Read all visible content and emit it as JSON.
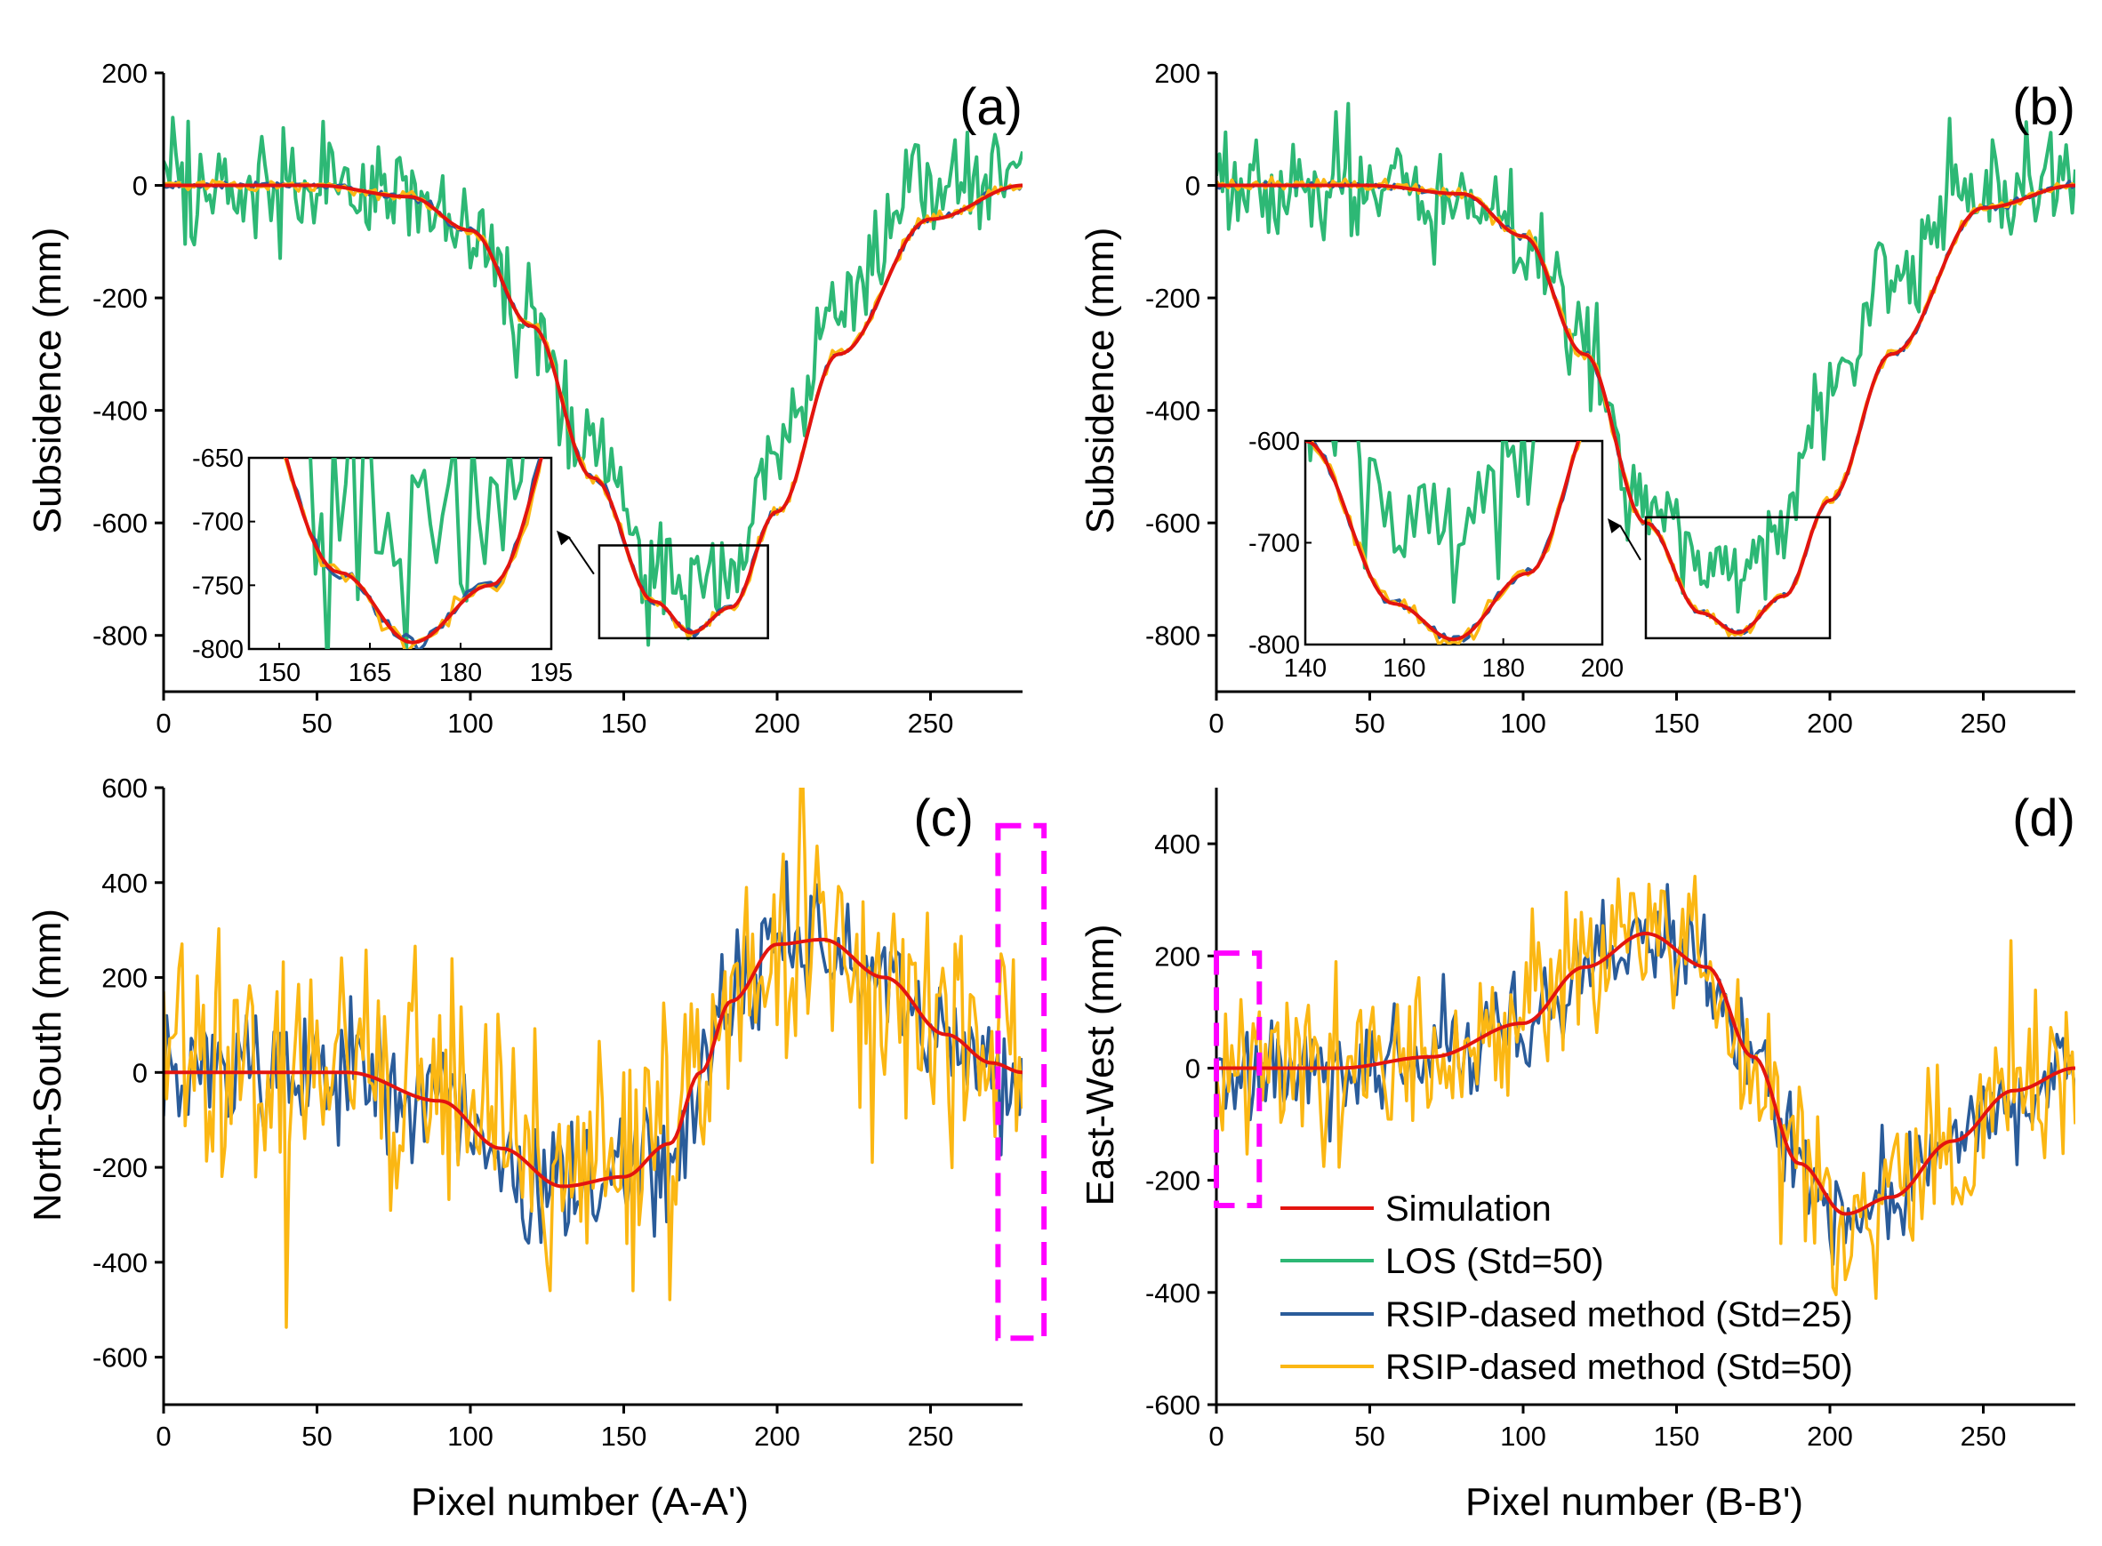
{
  "figure": {
    "series_names": [
      "Simulation",
      "LOS (Std=50)",
      "RSIP-dased method (Std=25)",
      "RSIP-dased method (Std=50)"
    ],
    "colors": {
      "simulation": "#e3140f",
      "los": "#2db875",
      "rsip25": "#2a5c9a",
      "rsip50": "#fbb713",
      "highlight": "#ff00ff",
      "axis": "#000000"
    }
  },
  "chart_data": [
    {
      "id": "a",
      "type": "line",
      "panel_label": "(a)",
      "title": "",
      "xlabel": "",
      "ylabel": "Subsidence (mm)",
      "xlim": [
        0,
        280
      ],
      "ylim": [
        -900,
        200
      ],
      "xticks": [
        0,
        50,
        100,
        150,
        200,
        250
      ],
      "yticks": [
        200,
        0,
        -200,
        -400,
        -600,
        -800
      ],
      "series": [
        {
          "name": "Simulation",
          "role": "simulation",
          "noise": 0,
          "values_x": [
            0,
            50,
            80,
            100,
            120,
            140,
            160,
            172,
            185,
            200,
            220,
            250,
            280
          ],
          "values_y": [
            0,
            0,
            -20,
            -80,
            -250,
            -520,
            -740,
            -795,
            -750,
            -580,
            -300,
            -60,
            0
          ]
        },
        {
          "name": "LOS (Std=50)",
          "role": "los",
          "noise": 50,
          "values_x": [
            0,
            50,
            80,
            100,
            120,
            140,
            160,
            172,
            185,
            200,
            220,
            250,
            280
          ],
          "values_y": [
            0,
            0,
            -20,
            -70,
            -260,
            -480,
            -670,
            -720,
            -640,
            -470,
            -200,
            0,
            20
          ]
        },
        {
          "name": "RSIP-dased method (Std=25)",
          "role": "rsip25",
          "noise": 3,
          "values_x": [
            0,
            50,
            80,
            100,
            120,
            140,
            160,
            172,
            185,
            200,
            220,
            250,
            280
          ],
          "values_y": [
            0,
            0,
            -20,
            -80,
            -250,
            -520,
            -740,
            -795,
            -750,
            -580,
            -300,
            -60,
            0
          ]
        },
        {
          "name": "RSIP-dased method (Std=50)",
          "role": "rsip50",
          "noise": 5,
          "values_x": [
            0,
            50,
            80,
            100,
            120,
            140,
            160,
            172,
            185,
            200,
            220,
            250,
            280
          ],
          "values_y": [
            0,
            0,
            -20,
            -80,
            -250,
            -520,
            -740,
            -795,
            -750,
            -580,
            -300,
            -60,
            0
          ]
        }
      ],
      "inset": {
        "xlim": [
          145,
          195
        ],
        "ylim": [
          -800,
          -650
        ],
        "xticks": [
          150,
          165,
          180,
          195
        ],
        "yticks": [
          -650,
          -700,
          -750,
          -800
        ],
        "zoom_box": {
          "x": [
            142,
            197
          ],
          "y": [
            -640,
            -805
          ]
        }
      }
    },
    {
      "id": "b",
      "type": "line",
      "panel_label": "(b)",
      "title": "",
      "xlabel": "",
      "ylabel": "Subsidence (mm)",
      "xlim": [
        0,
        280
      ],
      "ylim": [
        -900,
        200
      ],
      "xticks": [
        0,
        50,
        100,
        150,
        200,
        250
      ],
      "yticks": [
        200,
        0,
        -200,
        -400,
        -600,
        -800
      ],
      "series": [
        {
          "name": "Simulation",
          "role": "simulation",
          "noise": 0,
          "values_x": [
            0,
            50,
            80,
            100,
            120,
            140,
            158,
            170,
            185,
            200,
            220,
            250,
            280
          ],
          "values_y": [
            0,
            0,
            -15,
            -90,
            -300,
            -600,
            -760,
            -795,
            -730,
            -560,
            -300,
            -40,
            0
          ]
        },
        {
          "name": "LOS (Std=50)",
          "role": "los",
          "noise": 50,
          "values_x": [
            0,
            50,
            80,
            100,
            120,
            140,
            158,
            170,
            185,
            200,
            220,
            250,
            280
          ],
          "values_y": [
            0,
            0,
            -20,
            -80,
            -280,
            -560,
            -680,
            -680,
            -560,
            -380,
            -150,
            10,
            10
          ]
        },
        {
          "name": "RSIP-dased method (Std=25)",
          "role": "rsip25",
          "noise": 3,
          "values_x": [
            0,
            50,
            80,
            100,
            120,
            140,
            158,
            170,
            185,
            200,
            220,
            250,
            280
          ],
          "values_y": [
            0,
            0,
            -15,
            -90,
            -300,
            -600,
            -760,
            -795,
            -730,
            -560,
            -300,
            -40,
            0
          ]
        },
        {
          "name": "RSIP-dased method (Std=50)",
          "role": "rsip50",
          "noise": 5,
          "values_x": [
            0,
            50,
            80,
            100,
            120,
            140,
            158,
            170,
            185,
            200,
            220,
            250,
            280
          ],
          "values_y": [
            0,
            0,
            -15,
            -90,
            -300,
            -600,
            -760,
            -795,
            -730,
            -560,
            -300,
            -40,
            0
          ]
        }
      ],
      "inset": {
        "xlim": [
          140,
          200
        ],
        "ylim": [
          -800,
          -600
        ],
        "xticks": [
          140,
          160,
          180,
          200
        ],
        "yticks": [
          -600,
          -700,
          -800
        ],
        "zoom_box": {
          "x": [
            140,
            200
          ],
          "y": [
            -590,
            -805
          ]
        }
      }
    },
    {
      "id": "c",
      "type": "line",
      "panel_label": "(c)",
      "title": "",
      "xlabel": "Pixel number (A-A')",
      "ylabel": "North-South (mm)",
      "xlim": [
        0,
        280
      ],
      "ylim": [
        -700,
        600
      ],
      "xticks": [
        0,
        50,
        100,
        150,
        200,
        250
      ],
      "yticks": [
        600,
        400,
        200,
        0,
        -200,
        -400,
        -600
      ],
      "series": [
        {
          "name": "Simulation",
          "role": "simulation",
          "noise": 0,
          "values_x": [
            0,
            60,
            90,
            110,
            130,
            150,
            165,
            175,
            185,
            200,
            215,
            235,
            255,
            270,
            280
          ],
          "values_y": [
            0,
            0,
            -60,
            -160,
            -240,
            -220,
            -150,
            0,
            150,
            270,
            280,
            200,
            80,
            20,
            0
          ]
        },
        {
          "name": "RSIP-dased method (Std=25)",
          "role": "rsip25",
          "noise": 70,
          "values_x": [
            0,
            60,
            90,
            110,
            130,
            150,
            165,
            175,
            185,
            200,
            215,
            235,
            255,
            270,
            280
          ],
          "values_y": [
            0,
            0,
            -60,
            -160,
            -240,
            -220,
            -150,
            0,
            150,
            270,
            280,
            200,
            80,
            20,
            0
          ]
        },
        {
          "name": "RSIP-dased method (Std=50)",
          "role": "rsip50",
          "noise": 130,
          "values_x": [
            0,
            60,
            90,
            110,
            130,
            150,
            165,
            175,
            185,
            200,
            215,
            235,
            255,
            270,
            280
          ],
          "values_y": [
            0,
            0,
            -60,
            -160,
            -240,
            -220,
            -150,
            0,
            150,
            270,
            280,
            200,
            80,
            20,
            0
          ]
        }
      ],
      "highlight_box": {
        "x": [
          272,
          287
        ],
        "y": [
          -560,
          520
        ]
      }
    },
    {
      "id": "d",
      "type": "line",
      "panel_label": "(d)",
      "title": "",
      "xlabel": "Pixel number (B-B')",
      "ylabel": "East-West (mm)",
      "xlim": [
        0,
        280
      ],
      "ylim": [
        -600,
        500
      ],
      "xticks": [
        0,
        50,
        100,
        150,
        200,
        250
      ],
      "yticks": [
        400,
        200,
        0,
        -200,
        -400,
        -600
      ],
      "series": [
        {
          "name": "Simulation",
          "role": "simulation",
          "noise": 0,
          "values_x": [
            0,
            40,
            70,
            100,
            120,
            140,
            160,
            175,
            190,
            205,
            220,
            240,
            260,
            280
          ],
          "values_y": [
            0,
            0,
            20,
            80,
            180,
            240,
            180,
            20,
            -170,
            -260,
            -230,
            -130,
            -40,
            0
          ]
        },
        {
          "name": "RSIP-dased method (Std=25)",
          "role": "rsip25",
          "noise": 45,
          "values_x": [
            0,
            40,
            70,
            100,
            120,
            140,
            160,
            175,
            190,
            205,
            220,
            240,
            260,
            280
          ],
          "values_y": [
            0,
            0,
            20,
            80,
            180,
            240,
            180,
            20,
            -170,
            -260,
            -230,
            -130,
            -40,
            0
          ]
        },
        {
          "name": "RSIP-dased method (Std=50)",
          "role": "rsip50",
          "noise": 80,
          "values_x": [
            0,
            40,
            70,
            100,
            120,
            140,
            160,
            175,
            190,
            205,
            220,
            240,
            260,
            280
          ],
          "values_y": [
            0,
            0,
            20,
            80,
            180,
            240,
            180,
            20,
            -170,
            -260,
            -230,
            -130,
            -40,
            0
          ]
        }
      ],
      "highlight_box": {
        "x": [
          0,
          14
        ],
        "y": [
          -245,
          205
        ]
      },
      "legend": "lower-center"
    }
  ]
}
